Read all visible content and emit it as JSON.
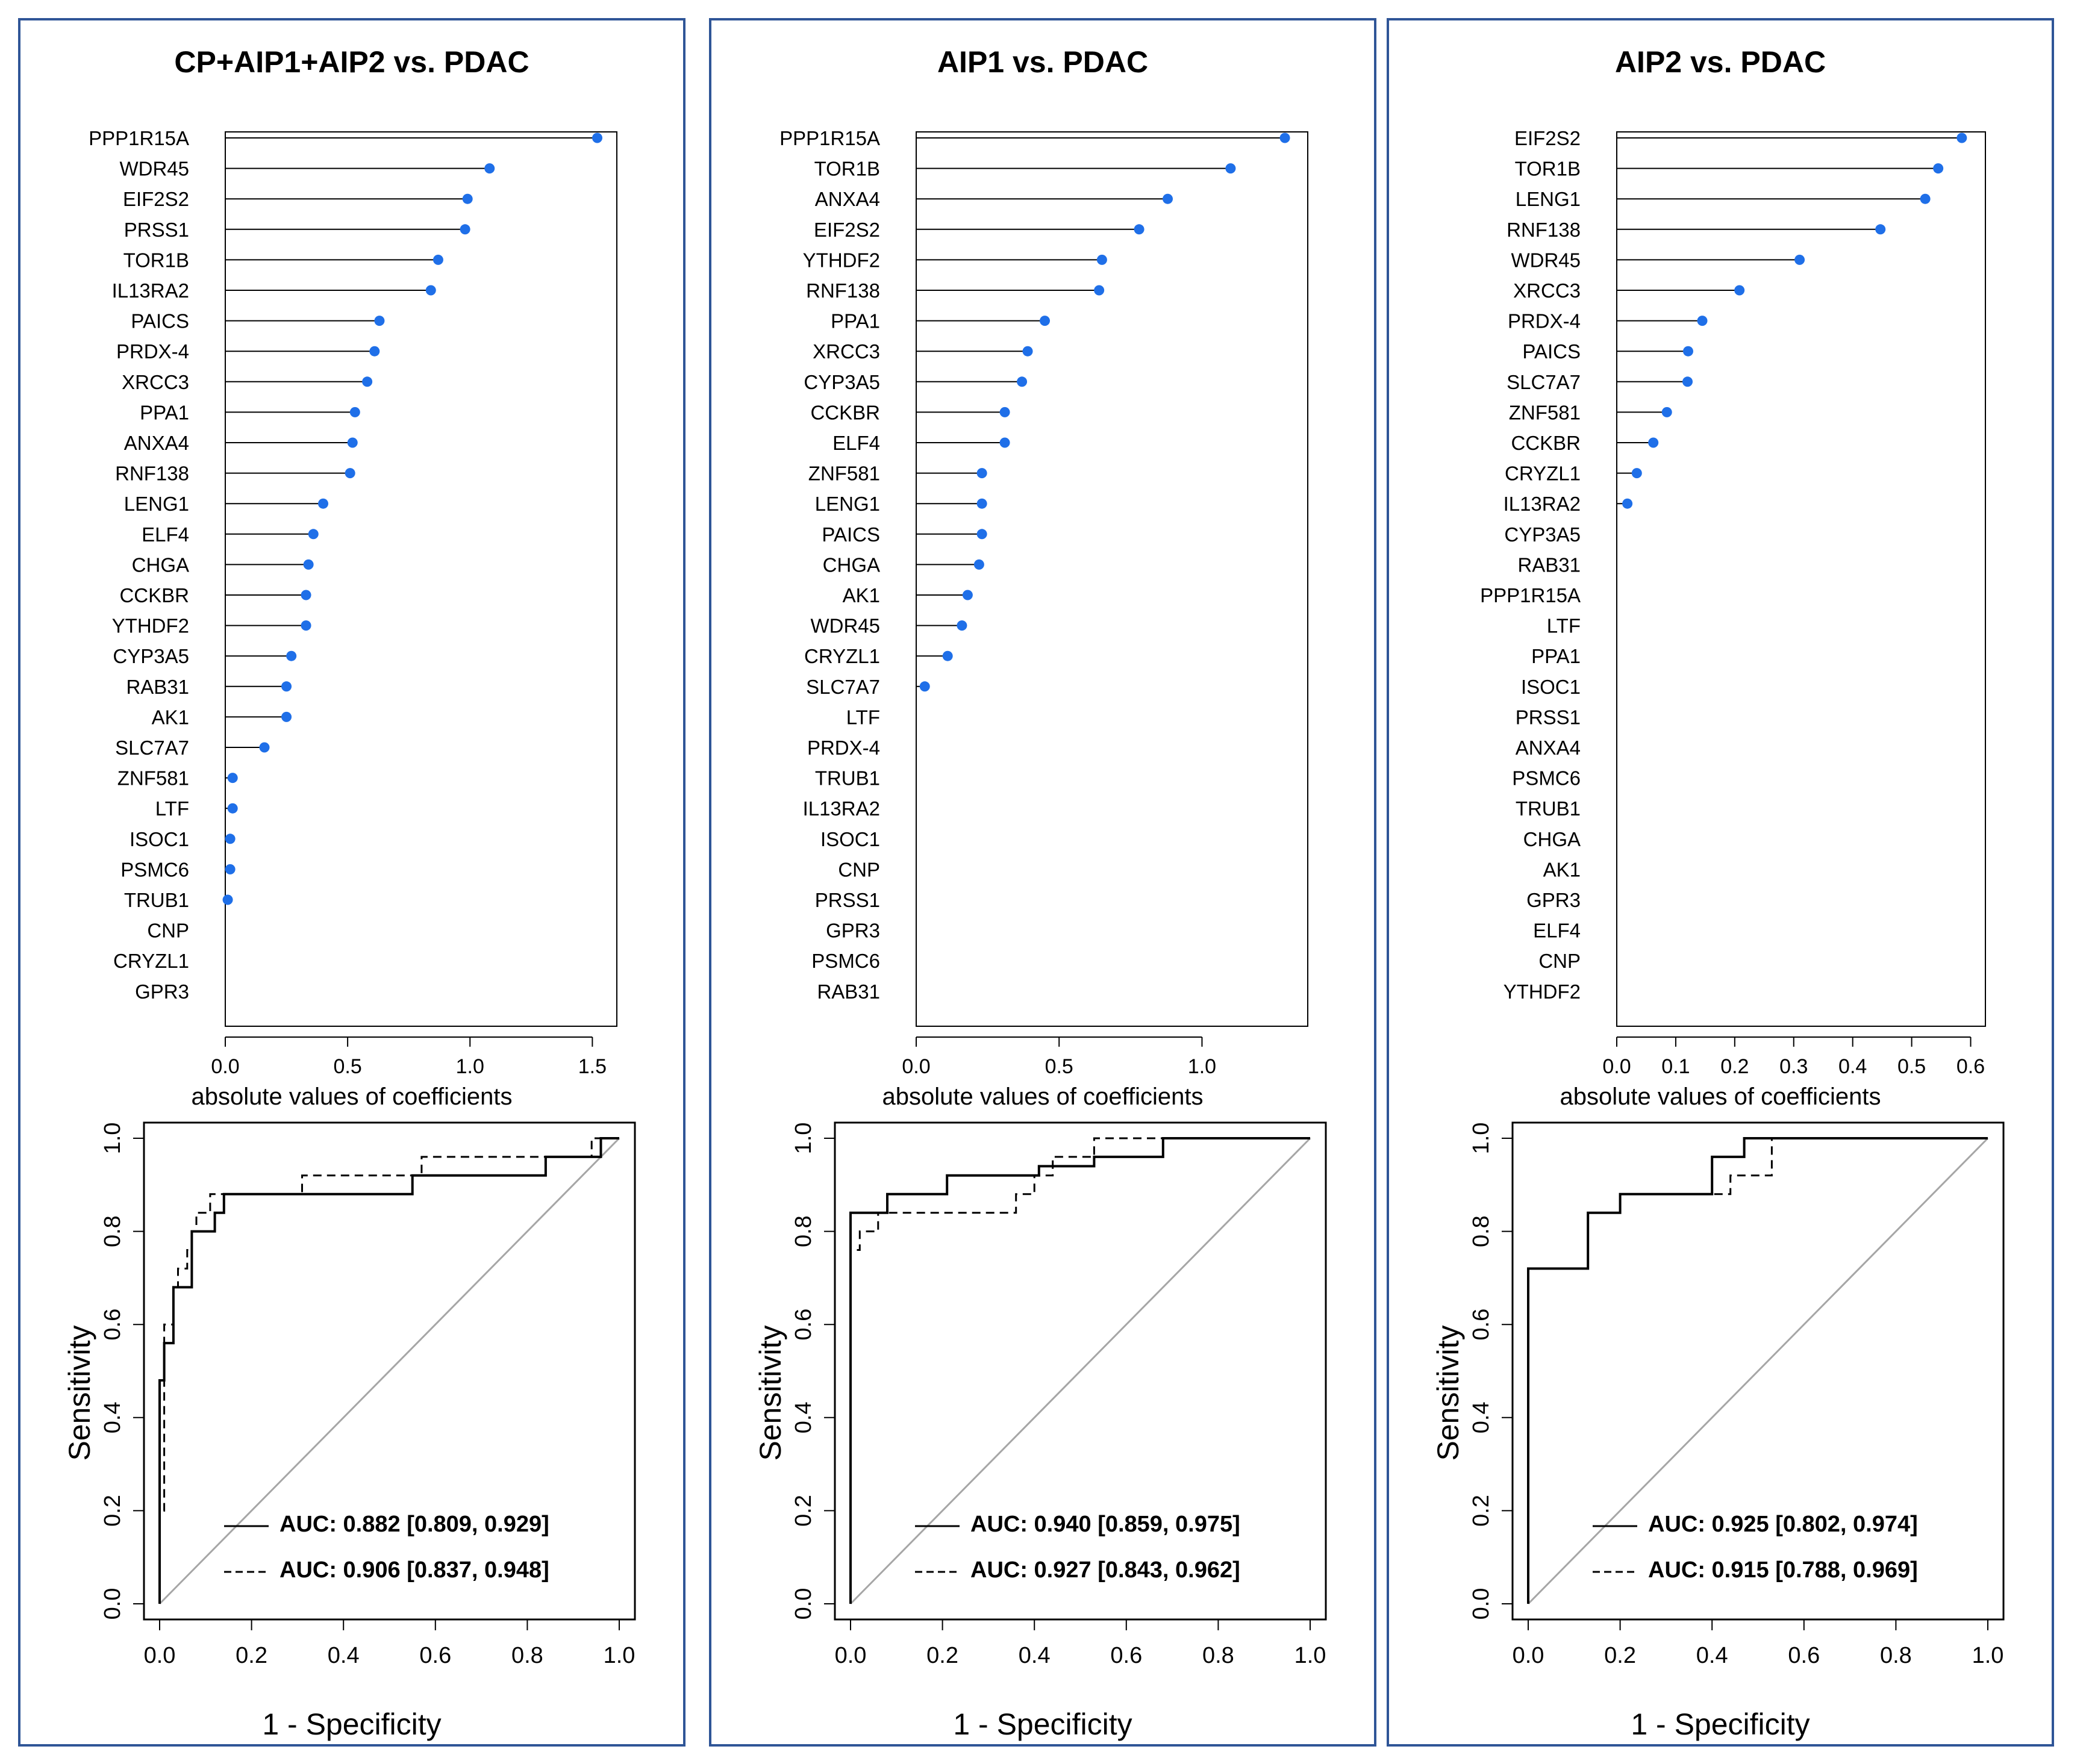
{
  "chart_data": [
    {
      "panel": "all",
      "title": "CP+AIP1+AIP2 vs. PDAC",
      "coef_chart": {
        "type": "lollipop",
        "xlabel": "absolute values of coefficients",
        "xlim": [
          0,
          1.6
        ],
        "xticks": [
          "0.0",
          "0.5",
          "1.0",
          "1.5"
        ],
        "xtick_values": [
          0,
          0.5,
          1.0,
          1.5
        ],
        "genes": [
          "PPP1R15A",
          "WDR45",
          "EIF2S2",
          "PRSS1",
          "TOR1B",
          "IL13RA2",
          "PAICS",
          "PRDX-4",
          "XRCC3",
          "PPA1",
          "ANXA4",
          "RNF138",
          "LENG1",
          "ELF4",
          "CHGA",
          "CCKBR",
          "YTHDF2",
          "CYP3A5",
          "RAB31",
          "AK1",
          "SLC7A7",
          "ZNF581",
          "LTF",
          "ISOC1",
          "PSMC6",
          "TRUB1",
          "CNP",
          "CRYZL1",
          "GPR3"
        ],
        "values": [
          1.52,
          1.08,
          0.99,
          0.98,
          0.87,
          0.84,
          0.63,
          0.61,
          0.58,
          0.53,
          0.52,
          0.51,
          0.4,
          0.36,
          0.34,
          0.33,
          0.33,
          0.27,
          0.25,
          0.25,
          0.16,
          0.03,
          0.03,
          0.02,
          0.02,
          0.01,
          0,
          0,
          0
        ]
      },
      "roc_chart": {
        "type": "line",
        "xlabel": "1 - Specificity",
        "ylabel": "Sensitivity",
        "ticks": [
          "0.0",
          "0.2",
          "0.4",
          "0.6",
          "0.8",
          "1.0"
        ],
        "tick_values": [
          0,
          0.2,
          0.4,
          0.6,
          0.8,
          1.0
        ],
        "series": [
          {
            "name": "AUC: 0.882 [0.809, 0.929]",
            "style": "solid",
            "points": [
              [
                0,
                0
              ],
              [
                0,
                0.48
              ],
              [
                0.01,
                0.48
              ],
              [
                0.01,
                0.56
              ],
              [
                0.03,
                0.56
              ],
              [
                0.03,
                0.68
              ],
              [
                0.07,
                0.68
              ],
              [
                0.07,
                0.8
              ],
              [
                0.12,
                0.8
              ],
              [
                0.12,
                0.84
              ],
              [
                0.14,
                0.84
              ],
              [
                0.14,
                0.88
              ],
              [
                0.55,
                0.88
              ],
              [
                0.55,
                0.92
              ],
              [
                0.84,
                0.92
              ],
              [
                0.84,
                0.96
              ],
              [
                0.96,
                0.96
              ],
              [
                0.96,
                1
              ],
              [
                1,
                1
              ]
            ]
          },
          {
            "name": "AUC: 0.906 [0.837, 0.948]",
            "style": "dashed",
            "points": [
              [
                0,
                0
              ],
              [
                0,
                0.2
              ],
              [
                0.01,
                0.2
              ],
              [
                0.01,
                0.6
              ],
              [
                0.03,
                0.6
              ],
              [
                0.03,
                0.68
              ],
              [
                0.04,
                0.68
              ],
              [
                0.04,
                0.72
              ],
              [
                0.06,
                0.72
              ],
              [
                0.06,
                0.76
              ],
              [
                0.07,
                0.76
              ],
              [
                0.07,
                0.8
              ],
              [
                0.08,
                0.8
              ],
              [
                0.08,
                0.84
              ],
              [
                0.11,
                0.84
              ],
              [
                0.11,
                0.88
              ],
              [
                0.31,
                0.88
              ],
              [
                0.31,
                0.92
              ],
              [
                0.57,
                0.92
              ],
              [
                0.57,
                0.96
              ],
              [
                0.94,
                0.96
              ],
              [
                0.94,
                1
              ],
              [
                1,
                1
              ]
            ]
          }
        ]
      }
    },
    {
      "panel": "aip1",
      "title": "AIP1 vs. PDAC",
      "coef_chart": {
        "type": "lollipop",
        "xlabel": "absolute values of coefficients",
        "xlim": [
          0,
          1.37
        ],
        "xticks": [
          "0.0",
          "0.5",
          "1.0"
        ],
        "xtick_values": [
          0,
          0.5,
          1.0
        ],
        "genes": [
          "PPP1R15A",
          "TOR1B",
          "ANXA4",
          "EIF2S2",
          "YTHDF2",
          "RNF138",
          "PPA1",
          "XRCC3",
          "CYP3A5",
          "CCKBR",
          "ELF4",
          "ZNF581",
          "LENG1",
          "PAICS",
          "CHGA",
          "AK1",
          "WDR45",
          "CRYZL1",
          "SLC7A7",
          "LTF",
          "PRDX-4",
          "TRUB1",
          "IL13RA2",
          "ISOC1",
          "CNP",
          "PRSS1",
          "GPR3",
          "PSMC6",
          "RAB31"
        ],
        "values": [
          1.29,
          1.1,
          0.88,
          0.78,
          0.65,
          0.64,
          0.45,
          0.39,
          0.37,
          0.31,
          0.31,
          0.23,
          0.23,
          0.23,
          0.22,
          0.18,
          0.16,
          0.11,
          0.03,
          0,
          0,
          0,
          0,
          0,
          0,
          0,
          0,
          0,
          0
        ]
      },
      "roc_chart": {
        "type": "line",
        "xlabel": "1 - Specificity",
        "ylabel": "Sensitivity",
        "ticks": [
          "0.0",
          "0.2",
          "0.4",
          "0.6",
          "0.8",
          "1.0"
        ],
        "tick_values": [
          0,
          0.2,
          0.4,
          0.6,
          0.8,
          1.0
        ],
        "series": [
          {
            "name": "AUC: 0.940 [0.859, 0.975]",
            "style": "solid",
            "points": [
              [
                0,
                0
              ],
              [
                0,
                0.84
              ],
              [
                0.08,
                0.84
              ],
              [
                0.08,
                0.88
              ],
              [
                0.21,
                0.88
              ],
              [
                0.21,
                0.92
              ],
              [
                0.41,
                0.92
              ],
              [
                0.41,
                0.94
              ],
              [
                0.53,
                0.94
              ],
              [
                0.53,
                0.96
              ],
              [
                0.68,
                0.96
              ],
              [
                0.68,
                1
              ],
              [
                1,
                1
              ]
            ]
          },
          {
            "name": "AUC: 0.927 [0.843, 0.962]",
            "style": "dashed",
            "points": [
              [
                0,
                0
              ],
              [
                0,
                0.76
              ],
              [
                0.02,
                0.76
              ],
              [
                0.02,
                0.8
              ],
              [
                0.06,
                0.8
              ],
              [
                0.06,
                0.84
              ],
              [
                0.36,
                0.84
              ],
              [
                0.36,
                0.88
              ],
              [
                0.4,
                0.88
              ],
              [
                0.4,
                0.92
              ],
              [
                0.44,
                0.92
              ],
              [
                0.44,
                0.96
              ],
              [
                0.53,
                0.96
              ],
              [
                0.53,
                1
              ],
              [
                1,
                1
              ]
            ]
          }
        ]
      }
    },
    {
      "panel": "aip2",
      "title": "AIP2 vs. PDAC",
      "coef_chart": {
        "type": "lollipop",
        "xlabel": "absolute values of coefficients",
        "xlim": [
          0,
          0.625
        ],
        "xticks": [
          "0.0",
          "0.1",
          "0.2",
          "0.3",
          "0.4",
          "0.5",
          "0.6"
        ],
        "xtick_values": [
          0,
          0.1,
          0.2,
          0.3,
          0.4,
          0.5,
          0.6
        ],
        "genes": [
          "EIF2S2",
          "TOR1B",
          "LENG1",
          "RNF138",
          "WDR45",
          "XRCC3",
          "PRDX-4",
          "PAICS",
          "SLC7A7",
          "ZNF581",
          "CCKBR",
          "CRYZL1",
          "IL13RA2",
          "CYP3A5",
          "RAB31",
          "PPP1R15A",
          "LTF",
          "PPA1",
          "ISOC1",
          "PRSS1",
          "ANXA4",
          "PSMC6",
          "TRUB1",
          "CHGA",
          "AK1",
          "GPR3",
          "ELF4",
          "CNP",
          "YTHDF2"
        ],
        "values": [
          0.585,
          0.545,
          0.523,
          0.447,
          0.31,
          0.208,
          0.145,
          0.121,
          0.12,
          0.085,
          0.062,
          0.034,
          0.018,
          0,
          0,
          0,
          0,
          0,
          0,
          0,
          0,
          0,
          0,
          0,
          0,
          0,
          0,
          0,
          0
        ]
      },
      "roc_chart": {
        "type": "line",
        "xlabel": "1 - Specificity",
        "ylabel": "Sensitivity",
        "ticks": [
          "0.0",
          "0.2",
          "0.4",
          "0.6",
          "0.8",
          "1.0"
        ],
        "tick_values": [
          0,
          0.2,
          0.4,
          0.6,
          0.8,
          1.0
        ],
        "series": [
          {
            "name": "AUC: 0.925 [0.802, 0.974]",
            "style": "solid",
            "points": [
              [
                0,
                0
              ],
              [
                0,
                0.72
              ],
              [
                0.13,
                0.72
              ],
              [
                0.13,
                0.84
              ],
              [
                0.2,
                0.84
              ],
              [
                0.2,
                0.88
              ],
              [
                0.4,
                0.88
              ],
              [
                0.4,
                0.96
              ],
              [
                0.47,
                0.96
              ],
              [
                0.47,
                1
              ],
              [
                1,
                1
              ]
            ]
          },
          {
            "name": "AUC: 0.915 [0.788, 0.969]",
            "style": "dashed",
            "points": [
              [
                0,
                0
              ],
              [
                0,
                0.72
              ],
              [
                0.13,
                0.72
              ],
              [
                0.13,
                0.84
              ],
              [
                0.2,
                0.84
              ],
              [
                0.2,
                0.88
              ],
              [
                0.4,
                0.88
              ],
              [
                0.44,
                0.88
              ],
              [
                0.44,
                0.92
              ],
              [
                0.53,
                0.92
              ],
              [
                0.53,
                0.96
              ],
              [
                0.53,
                1
              ],
              [
                1,
                1
              ]
            ]
          }
        ]
      }
    }
  ],
  "colors": {
    "panel_border": "#2f5597",
    "lollipop_dot": "#1f6fe8",
    "lollipop_stem": "#000000",
    "diagonal": "#a6a6a6"
  }
}
